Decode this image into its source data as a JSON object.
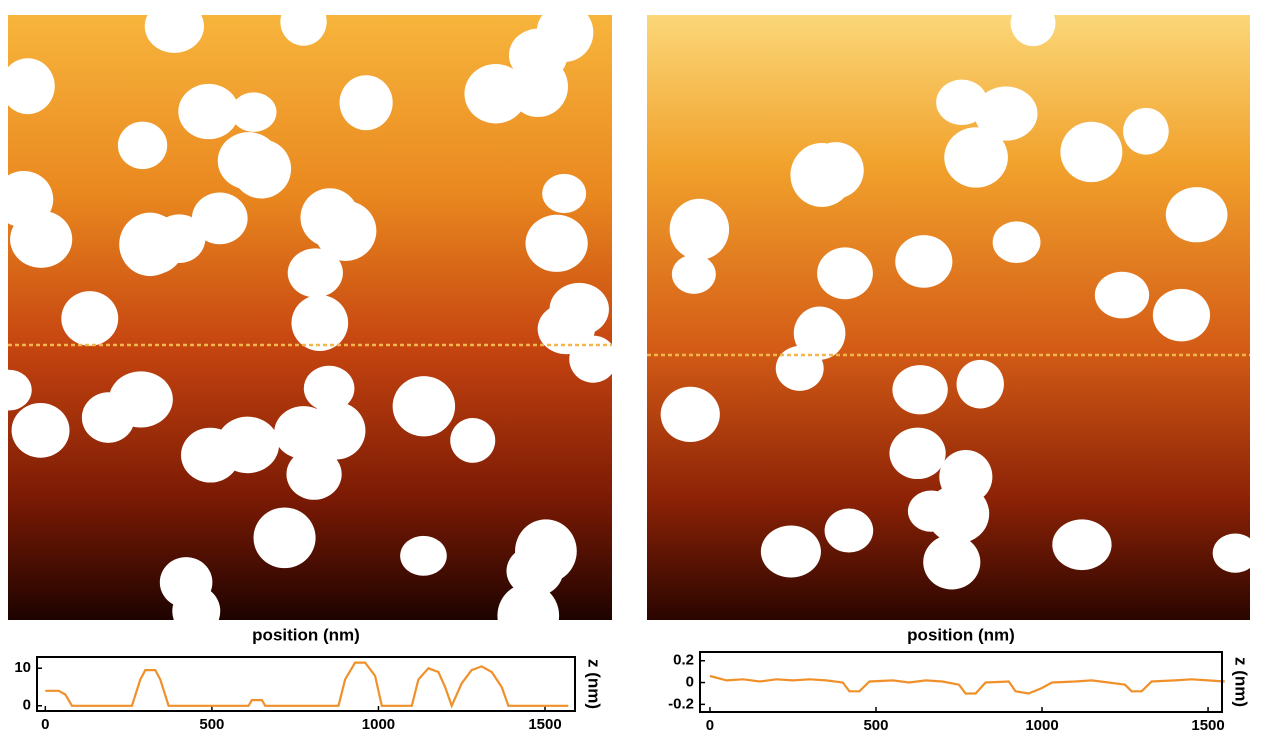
{
  "chart_data": [
    {
      "type": "line",
      "xlabel": "position (nm)",
      "ylabel": "z (nm)",
      "color": "#f0902a",
      "x": [
        0,
        40,
        60,
        80,
        260,
        285,
        300,
        330,
        345,
        370,
        610,
        620,
        650,
        660,
        880,
        900,
        930,
        960,
        990,
        1010,
        1100,
        1120,
        1150,
        1180,
        1200,
        1220,
        1250,
        1280,
        1310,
        1340,
        1370,
        1390,
        1570
      ],
      "values": [
        4,
        4,
        3,
        0,
        0,
        7,
        9.5,
        9.5,
        7,
        0,
        0,
        1.5,
        1.5,
        0,
        0,
        7,
        11.5,
        11.5,
        8,
        0,
        0,
        7,
        10,
        9,
        5,
        0,
        6,
        9.5,
        10.5,
        9,
        5,
        0,
        0
      ],
      "xlim": [
        -25,
        1590
      ],
      "ylim": [
        -1.4,
        13
      ],
      "xticks": [
        0,
        500,
        1000,
        1500
      ],
      "yticks": [
        0,
        10
      ]
    },
    {
      "type": "line",
      "xlabel": "position (nm)",
      "ylabel": "z (nm)",
      "color": "#f0902a",
      "x": [
        0,
        50,
        100,
        150,
        200,
        250,
        300,
        350,
        400,
        420,
        450,
        480,
        550,
        600,
        650,
        700,
        750,
        770,
        800,
        830,
        900,
        920,
        960,
        1000,
        1030,
        1100,
        1150,
        1200,
        1250,
        1270,
        1300,
        1330,
        1400,
        1450,
        1500,
        1550
      ],
      "values": [
        0.06,
        0.02,
        0.03,
        0.01,
        0.03,
        0.02,
        0.03,
        0.02,
        0.0,
        -0.08,
        -0.08,
        0.01,
        0.02,
        0.0,
        0.02,
        0.01,
        -0.02,
        -0.1,
        -0.1,
        0.0,
        0.01,
        -0.08,
        -0.1,
        -0.05,
        0.0,
        0.01,
        0.02,
        0.0,
        -0.02,
        -0.08,
        -0.08,
        0.01,
        0.02,
        0.03,
        0.02,
        0.01
      ],
      "xlim": [
        -30,
        1542
      ],
      "ylim": [
        -0.27,
        0.28
      ],
      "xticks": [
        0,
        500,
        1000,
        1500
      ],
      "yticks": [
        0.2,
        0,
        -0.2
      ]
    }
  ]
}
